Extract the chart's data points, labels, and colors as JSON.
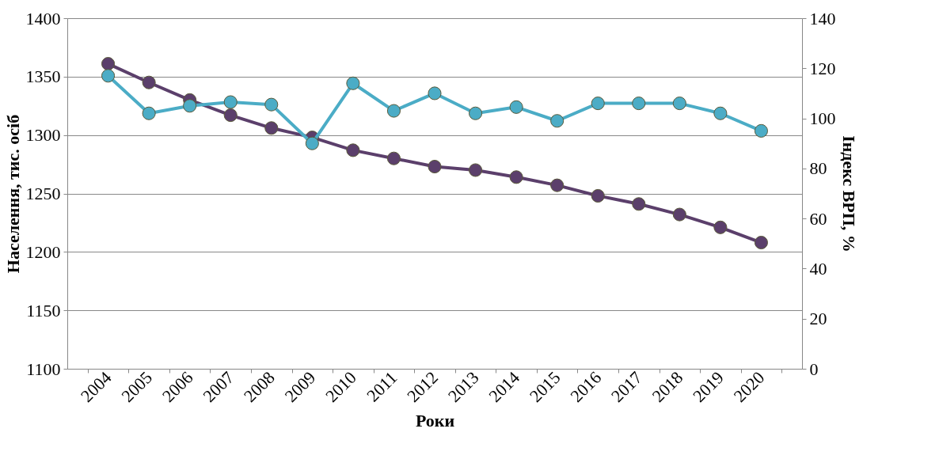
{
  "chart_data": {
    "type": "line",
    "xlabel": "Роки",
    "ylabel": "Населення, тис. осіб",
    "y2label": "Індекс ВРП, %",
    "categories": [
      "2004",
      "2005",
      "2006",
      "2007",
      "2008",
      "2009",
      "2010",
      "2011",
      "2012",
      "2013",
      "2014",
      "2015",
      "2016",
      "2017",
      "2018",
      "2019",
      "2020"
    ],
    "series": [
      {
        "color": "#5b3f6b",
        "values": [
          1361,
          1345,
          1330,
          1317,
          1306,
          1298,
          1287,
          1280,
          1273,
          1270,
          1264,
          1257,
          1248,
          1241,
          1232,
          1221,
          1208
        ]
      },
      {
        "color": "#4bacc6",
        "axis": "y2",
        "values": [
          117,
          102,
          105,
          106.5,
          105.5,
          90,
          114,
          103,
          110,
          102,
          104.5,
          99,
          106,
          106,
          106,
          102,
          95
        ]
      }
    ],
    "ylim": [
      1100,
      1400
    ],
    "yticks": [
      1100,
      1150,
      1200,
      1250,
      1300,
      1350,
      1400
    ],
    "y2lim": [
      0,
      140
    ],
    "y2ticks": [
      0,
      20,
      40,
      60,
      80,
      100,
      120,
      140
    ],
    "grid": "y",
    "marker": "circle",
    "line_style": "solid"
  }
}
